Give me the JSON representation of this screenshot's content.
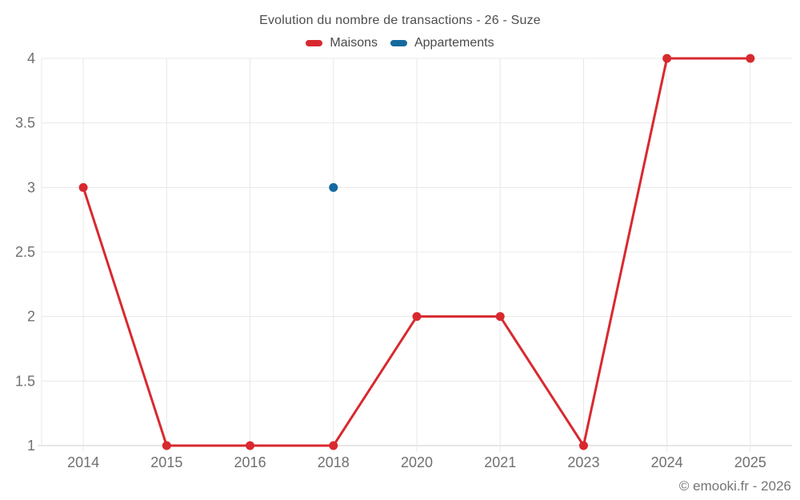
{
  "chart_data": {
    "type": "line",
    "title": "Evolution du nombre de transactions - 26 - Suze",
    "categories": [
      "2014",
      "2015",
      "2016",
      "2018",
      "2020",
      "2021",
      "2023",
      "2024",
      "2025"
    ],
    "series": [
      {
        "name": "Maisons",
        "color": "#d8292f",
        "values": [
          3,
          1,
          1,
          1,
          2,
          2,
          1,
          4,
          4
        ]
      },
      {
        "name": "Appartements",
        "color": "#15699f",
        "values": [
          null,
          null,
          null,
          3,
          null,
          null,
          null,
          null,
          null
        ]
      }
    ],
    "ylim": [
      1,
      4
    ],
    "yticks": [
      1,
      1.5,
      2,
      2.5,
      3,
      3.5,
      4
    ],
    "grid": true,
    "legend_position": "top",
    "xlabel": "",
    "ylabel": "",
    "footer": "© emooki.fr - 2026",
    "colors": {
      "grid_line": "#e8e8e8",
      "axis_line": "#cccccc",
      "tick_label": "#707070"
    }
  }
}
